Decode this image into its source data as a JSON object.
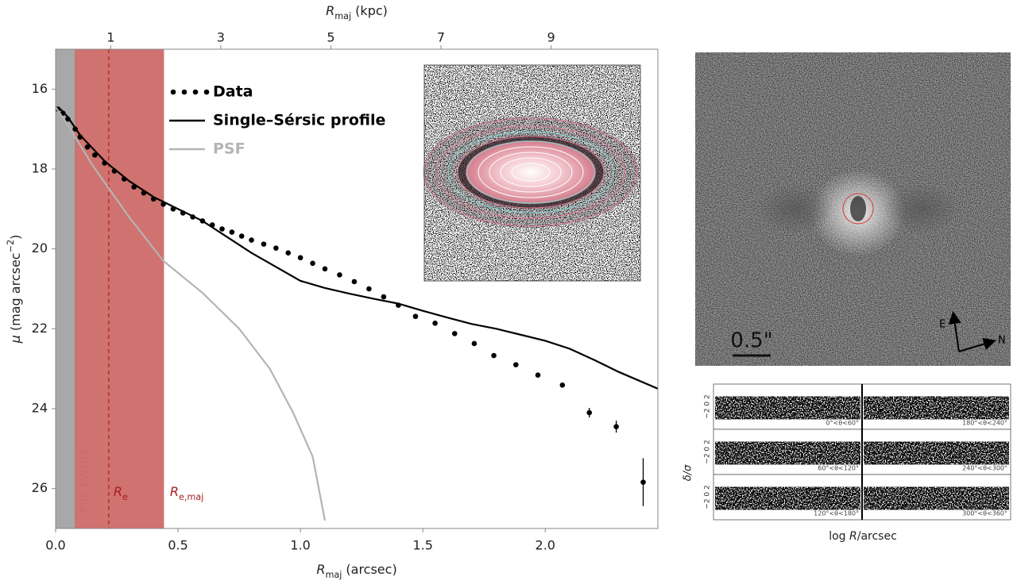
{
  "chart_data": {
    "type": "scatter",
    "x_label": {
      "text": "R",
      "sub": "maj",
      "tail": " (arcsec)"
    },
    "x2_label": {
      "text": "R",
      "sub": "maj",
      "tail": " (kpc)"
    },
    "y_label": {
      "text": "μ",
      "tail": " (mag arcsec",
      "sup": "−2",
      "end": ")"
    },
    "xlim": [
      0,
      2.46
    ],
    "xticks": [
      {
        "value": 0,
        "label": "0.0"
      },
      0.5,
      {
        "value": 1,
        "label": "1.0"
      },
      1.5,
      {
        "value": 2,
        "label": "2.0"
      }
    ],
    "x2lim": [
      0,
      10.94
    ],
    "x2ticks": [
      1,
      3,
      5,
      7,
      9
    ],
    "ylim": [
      15,
      27
    ],
    "y_inverted": true,
    "yticks": [
      16,
      18,
      20,
      22,
      24,
      26
    ],
    "regions": [
      {
        "x": [
          0,
          0.081
        ],
        "color": "#9a9a9a",
        "label": "PSF FWHM"
      },
      {
        "x": [
          0.081,
          0.441
        ],
        "color": "#c85a57",
        "label": {
          "text": "R",
          "sub": "e,maj"
        }
      }
    ],
    "vlines": [
      {
        "x": 0.217,
        "color": "#a82020",
        "label": {
          "text": "R",
          "sub": "e"
        }
      }
    ],
    "series": [
      {
        "name": "Data",
        "color": "#000000",
        "style": "dots",
        "x": [
          0.01,
          0.03,
          0.05,
          0.08,
          0.1,
          0.13,
          0.16,
          0.2,
          0.24,
          0.28,
          0.32,
          0.36,
          0.4,
          0.44,
          0.48,
          0.52,
          0.56,
          0.6,
          0.64,
          0.68,
          0.72,
          0.76,
          0.8,
          0.85,
          0.9,
          0.95,
          1.0,
          1.05,
          1.1,
          1.16,
          1.22,
          1.28,
          1.34,
          1.4,
          1.47,
          1.55,
          1.63,
          1.71,
          1.79,
          1.88,
          1.97,
          2.07,
          2.18,
          2.29,
          2.4
        ],
        "values": [
          16.5,
          16.6,
          16.75,
          17.0,
          17.2,
          17.45,
          17.65,
          17.85,
          18.05,
          18.25,
          18.45,
          18.6,
          18.75,
          18.88,
          19.0,
          19.1,
          19.2,
          19.3,
          19.4,
          19.5,
          19.58,
          19.68,
          19.78,
          19.88,
          19.98,
          20.1,
          20.22,
          20.36,
          20.5,
          20.65,
          20.82,
          21.0,
          21.2,
          21.41,
          21.69,
          21.86,
          22.12,
          22.37,
          22.67,
          22.9,
          23.16,
          23.41,
          24.1,
          24.45,
          25.84
        ],
        "errors": [
          null,
          null,
          null,
          null,
          null,
          null,
          null,
          null,
          null,
          null,
          null,
          null,
          null,
          null,
          null,
          null,
          null,
          null,
          null,
          null,
          null,
          null,
          null,
          null,
          null,
          null,
          null,
          null,
          null,
          null,
          null,
          null,
          null,
          null,
          null,
          null,
          null,
          null,
          null,
          null,
          null,
          null,
          0.12,
          0.15,
          0.6
        ]
      },
      {
        "name": "Single–Sérsic profile",
        "color": "#000000",
        "style": "line",
        "x": [
          0,
          0.02,
          0.05,
          0.1,
          0.2,
          0.3,
          0.4,
          0.5,
          0.6,
          0.7,
          0.8,
          0.9,
          1.0,
          1.1,
          1.2,
          1.3,
          1.4,
          1.5,
          1.6,
          1.7,
          1.8,
          1.9,
          2.0,
          2.1,
          2.2,
          2.3,
          2.46
        ],
        "values": [
          16.45,
          16.5,
          16.7,
          17.15,
          17.8,
          18.3,
          18.7,
          19.0,
          19.3,
          19.7,
          20.1,
          20.45,
          20.8,
          20.98,
          21.12,
          21.25,
          21.37,
          21.55,
          21.72,
          21.88,
          22.0,
          22.15,
          22.3,
          22.5,
          22.78,
          23.08,
          23.5
        ]
      },
      {
        "name": "PSF",
        "color": "#b4b4b4",
        "style": "line",
        "x": [
          0,
          0.05,
          0.1,
          0.15,
          0.19,
          0.3,
          0.44,
          0.6,
          0.75,
          0.875,
          0.97,
          1.05,
          1.1
        ],
        "values": [
          16.45,
          16.9,
          17.4,
          17.9,
          18.25,
          19.2,
          20.3,
          21.1,
          22.0,
          23.0,
          24.1,
          25.2,
          26.8
        ]
      }
    ]
  },
  "residual_image": {
    "scale_label": "0.5\"",
    "east": "E",
    "north": "N"
  },
  "residual_panels": {
    "y_label": "δ/σ",
    "y_tick_text": "−2 0 2",
    "x_label": {
      "pre": "log ",
      "var": "R",
      "post": "/arcsec"
    },
    "panels": [
      "0°<θ<60°",
      "180°<θ<240°",
      "60°<θ<120°",
      "240°<θ<300°",
      "120°<θ<180°",
      "300°<θ<360°"
    ]
  }
}
